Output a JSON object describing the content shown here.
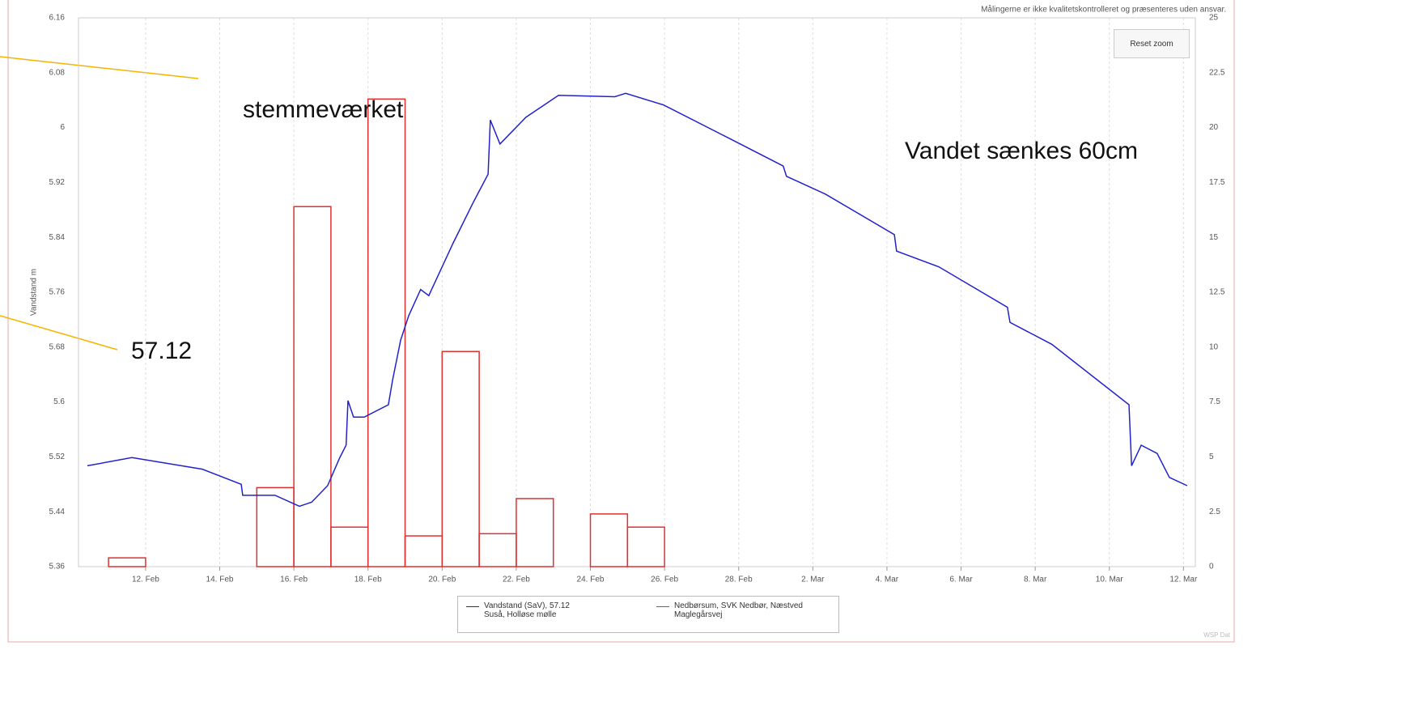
{
  "chart_data": {
    "type": "line",
    "disclaimer": "Målingerne er ikke kvalitetskontrolleret og præsenteres uden ansvar.",
    "button": "Reset zoom",
    "ylabel": "Vandstand m",
    "credit": "WSP Dat",
    "annotations": [
      "stemmeværket",
      "Vandet sænkes 60cm",
      "57.12"
    ],
    "xlim": [
      41.19,
      71.32
    ],
    "xticks": [
      {
        "value": 43,
        "label": "12. Feb"
      },
      {
        "value": 45,
        "label": "14. Feb"
      },
      {
        "value": 47,
        "label": "16. Feb"
      },
      {
        "value": 49,
        "label": "18. Feb"
      },
      {
        "value": 51,
        "label": "20. Feb"
      },
      {
        "value": 53,
        "label": "22. Feb"
      },
      {
        "value": 55,
        "label": "24. Feb"
      },
      {
        "value": 57,
        "label": "26. Feb"
      },
      {
        "value": 59,
        "label": "28. Feb"
      },
      {
        "value": 61,
        "label": "2. Mar"
      },
      {
        "value": 63,
        "label": "4. Mar"
      },
      {
        "value": 65,
        "label": "6. Mar"
      },
      {
        "value": 67,
        "label": "8. Mar"
      },
      {
        "value": 69,
        "label": "10. Mar"
      },
      {
        "value": 71,
        "label": "12. Mar"
      }
    ],
    "ylim": [
      5.36,
      6.16
    ],
    "yticks": [
      5.36,
      5.44,
      5.52,
      5.6,
      5.68,
      5.76,
      5.84,
      5.92,
      6,
      6.08,
      6.16
    ],
    "y2lim": [
      0,
      25
    ],
    "y2ticks": [
      0,
      2.5,
      5,
      7.5,
      10,
      12.5,
      15,
      17.5,
      20,
      22.5,
      25
    ],
    "xgrid": true,
    "series": [
      {
        "name": "Vandstand (SaV), 57.12 Suså, Holløse mølle",
        "color": "#2222cc",
        "kind": "line",
        "axis": "y",
        "x": [
          41.43,
          42.63,
          44.53,
          45.58,
          45.62,
          46.49,
          47.15,
          47.48,
          47.91,
          48.24,
          48.41,
          48.46,
          48.61,
          48.9,
          49.55,
          49.66,
          49.88,
          50.1,
          50.42,
          50.64,
          51.3,
          51.84,
          52.24,
          52.3,
          52.56,
          53.26,
          54.14,
          55.66,
          55.95,
          56.97,
          58.72,
          60.2,
          60.29,
          61.34,
          63.2,
          63.26,
          64.4,
          66.25,
          66.32,
          67.45,
          69.53,
          69.6,
          69.86,
          70.29,
          70.62,
          71.1
        ],
        "values": [
          5.507,
          5.519,
          5.502,
          5.48,
          5.464,
          5.464,
          5.448,
          5.454,
          5.478,
          5.519,
          5.537,
          5.602,
          5.578,
          5.578,
          5.596,
          5.631,
          5.69,
          5.726,
          5.764,
          5.755,
          5.832,
          5.891,
          5.932,
          6.011,
          5.976,
          6.015,
          6.047,
          6.045,
          6.05,
          6.033,
          5.985,
          5.944,
          5.929,
          5.903,
          5.844,
          5.82,
          5.797,
          5.738,
          5.716,
          5.684,
          5.596,
          5.507,
          5.537,
          5.525,
          5.49,
          5.478
        ]
      },
      {
        "name": "Nedbørsum, SVK Nedbør, Næstved Maglegårsvej",
        "color": "#e03030",
        "kind": "bar",
        "axis": "y2",
        "x": [
          42,
          46,
          47,
          48,
          49,
          50,
          51,
          52,
          53,
          55,
          56
        ],
        "values": [
          0.4,
          3.6,
          16.4,
          1.8,
          21.3,
          1.4,
          9.8,
          1.5,
          3.1,
          2.4,
          1.8
        ]
      }
    ]
  }
}
